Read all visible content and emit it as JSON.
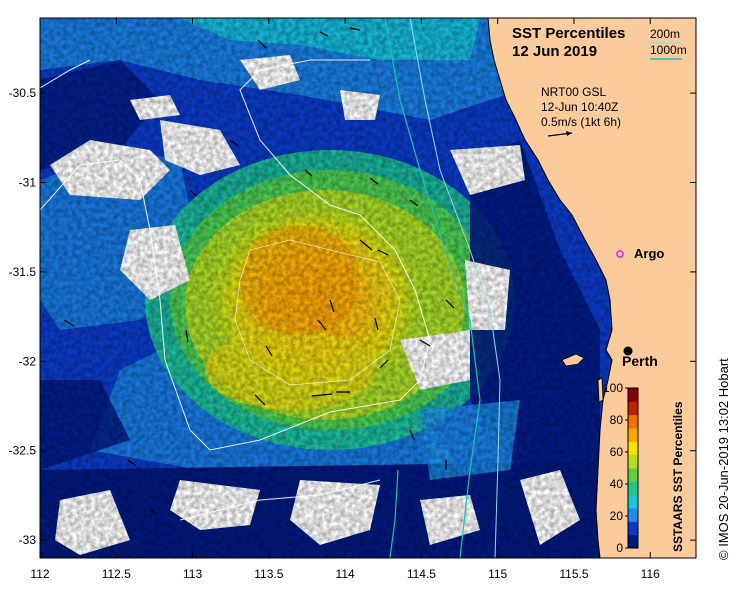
{
  "title": {
    "line1": "SST Percentiles",
    "line2": "12 Jun 2019"
  },
  "contour_legend": {
    "items": [
      {
        "label": "200m",
        "color": "#9ad8e8"
      },
      {
        "label": "1000m",
        "color": "#19c4b4"
      }
    ]
  },
  "current_info": {
    "source": "NRT00 GSL",
    "time": "12-Jun 10:40Z",
    "scale": "0.5m/s (1kt 6h)"
  },
  "places": [
    {
      "name": "Argo",
      "lon": 115.8,
      "lat": -31.45,
      "marker_color": "#e040e0",
      "label": "Argo"
    },
    {
      "name": "Perth",
      "lon": 115.86,
      "lat": -31.95,
      "marker_color": "#000000",
      "label": "Perth"
    }
  ],
  "colorbar": {
    "title": "SSTAARS SST Percentiles",
    "ticks": [
      "0",
      "20",
      "40",
      "60",
      "80",
      "100"
    ],
    "colors": [
      "#001a80",
      "#0a3ac8",
      "#1c8ee8",
      "#15c8d8",
      "#1dc890",
      "#58d040",
      "#b8dc20",
      "#f8e000",
      "#f8a800",
      "#f07000",
      "#c02000",
      "#880000"
    ]
  },
  "credit": "© IMOS 20-Jun-2019 13:02 Hobart",
  "map": {
    "lon_range": [
      112,
      116.3
    ],
    "lat_range": [
      -33.1,
      -30.08
    ],
    "x_ticks": [
      "112",
      "112.5",
      "113",
      "113.5",
      "114",
      "114.5",
      "115",
      "115.5",
      "116"
    ],
    "y_ticks": [
      "-30.5",
      "-31",
      "-31.5",
      "-32",
      "-32.5",
      "-33"
    ],
    "land_color": "#fbcb9c",
    "cloud_color": "#ffffff"
  }
}
